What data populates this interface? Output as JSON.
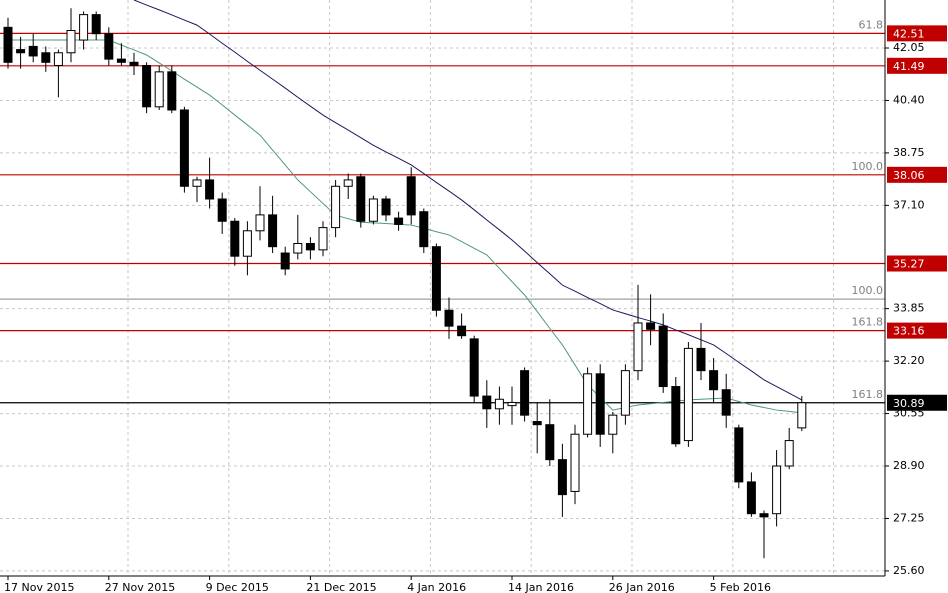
{
  "chart_data": {
    "type": "candlestick",
    "categories": [
      "17 Nov 2015",
      null,
      null,
      null,
      null,
      null,
      null,
      null,
      "27 Nov 2015",
      null,
      null,
      null,
      null,
      null,
      null,
      null,
      "9 Dec 2015",
      null,
      null,
      null,
      null,
      null,
      null,
      null,
      "21 Dec 2015",
      null,
      null,
      null,
      null,
      null,
      null,
      null,
      "4 Jan 2016",
      null,
      null,
      null,
      null,
      null,
      null,
      null,
      "14 Jan 2016",
      null,
      null,
      null,
      null,
      null,
      null,
      null,
      "26 Jan 2016",
      null,
      null,
      null,
      null,
      null,
      null,
      null,
      "5 Feb 2016",
      null,
      null,
      null,
      null,
      null,
      null,
      null
    ],
    "open": [
      42.7,
      42.0,
      42.1,
      41.9,
      41.5,
      41.9,
      42.3,
      43.1,
      42.5,
      41.7,
      41.6,
      41.5,
      40.2,
      41.3,
      40.1,
      37.7,
      37.9,
      37.3,
      36.6,
      35.5,
      36.3,
      36.8,
      35.6,
      35.6,
      35.9,
      35.7,
      36.4,
      37.7,
      38.0,
      36.6,
      37.3,
      36.7,
      38.0,
      36.9,
      35.8,
      33.8,
      33.3,
      32.9,
      31.1,
      30.7,
      30.8,
      31.9,
      30.3,
      30.2,
      29.1,
      28.1,
      29.9,
      31.8,
      29.9,
      30.5,
      31.9,
      33.4,
      33.3,
      31.4,
      29.7,
      32.6,
      31.9,
      31.3,
      30.1,
      28.4,
      27.4,
      27.4,
      28.9,
      30.1
    ],
    "high": [
      43.0,
      42.4,
      42.5,
      42.1,
      42.0,
      43.3,
      43.2,
      43.2,
      42.7,
      42.2,
      41.9,
      41.6,
      41.5,
      41.5,
      40.2,
      38.0,
      38.6,
      37.5,
      36.7,
      36.6,
      37.7,
      37.4,
      35.8,
      36.8,
      36.1,
      36.6,
      37.9,
      38.1,
      38.1,
      37.4,
      37.4,
      36.9,
      38.3,
      37.0,
      35.9,
      34.2,
      33.7,
      33.0,
      31.6,
      31.4,
      31.4,
      32.0,
      30.9,
      31.0,
      29.6,
      30.2,
      32.0,
      32.1,
      30.6,
      32.1,
      34.6,
      34.3,
      33.7,
      31.7,
      32.8,
      33.4,
      32.3,
      31.8,
      30.2,
      28.7,
      27.5,
      29.4,
      30.1,
      31.1
    ],
    "low": [
      41.4,
      41.4,
      41.6,
      41.3,
      40.5,
      41.6,
      42.0,
      42.3,
      41.5,
      41.5,
      41.2,
      40.0,
      40.1,
      40.0,
      37.5,
      37.2,
      37.0,
      36.2,
      35.2,
      34.9,
      36.0,
      35.6,
      34.9,
      35.4,
      35.4,
      35.5,
      36.1,
      37.3,
      36.4,
      36.5,
      36.6,
      36.3,
      36.5,
      35.6,
      33.6,
      32.9,
      32.9,
      30.9,
      30.1,
      30.2,
      30.2,
      30.3,
      29.3,
      28.9,
      27.3,
      27.7,
      29.8,
      29.5,
      29.3,
      30.2,
      31.6,
      32.7,
      31.2,
      29.5,
      29.5,
      31.6,
      30.9,
      30.1,
      28.2,
      27.3,
      26.0,
      27.0,
      28.8,
      30.0
    ],
    "close": [
      41.6,
      41.9,
      41.8,
      41.6,
      41.9,
      42.6,
      43.1,
      42.5,
      41.7,
      41.6,
      41.5,
      40.2,
      41.3,
      40.1,
      37.7,
      37.9,
      37.3,
      36.6,
      35.5,
      36.3,
      36.8,
      35.8,
      35.1,
      35.9,
      35.7,
      36.4,
      37.7,
      37.9,
      36.6,
      37.3,
      36.8,
      36.5,
      36.8,
      35.8,
      33.8,
      33.3,
      33.0,
      31.1,
      30.7,
      31.0,
      30.9,
      30.5,
      30.2,
      29.1,
      28.0,
      29.9,
      31.8,
      29.9,
      30.5,
      31.9,
      33.4,
      33.2,
      31.4,
      29.6,
      32.6,
      31.9,
      31.3,
      30.5,
      28.4,
      27.4,
      27.3,
      28.9,
      29.7,
      30.89
    ],
    "up_color": "#ffffff",
    "down_color": "#000000",
    "moving_averages": [
      {
        "color": "#1a1a5e",
        "values": [
          null,
          null,
          null,
          null,
          null,
          null,
          null,
          null,
          null,
          null,
          43.56,
          43.4,
          43.25,
          43.09,
          42.93,
          42.77,
          42.49,
          42.2,
          41.92,
          41.63,
          41.35,
          41.07,
          40.79,
          40.5,
          40.22,
          39.94,
          39.7,
          39.47,
          39.23,
          38.99,
          38.78,
          38.58,
          38.37,
          38.1,
          37.82,
          37.55,
          37.27,
          36.96,
          36.64,
          36.33,
          36.01,
          35.66,
          35.3,
          34.95,
          34.59,
          34.4,
          34.2,
          34.01,
          33.81,
          33.69,
          33.57,
          33.46,
          33.34,
          33.18,
          33.03,
          32.87,
          32.71,
          32.44,
          32.16,
          31.89,
          31.61,
          31.4,
          31.19,
          30.98
        ]
      },
      {
        "color": "#4f9a74",
        "values": [
          42.3,
          42.3,
          42.3,
          42.3,
          42.3,
          42.3,
          42.3,
          42.3,
          42.3,
          42.14,
          41.99,
          41.83,
          41.58,
          41.33,
          41.07,
          40.82,
          40.57,
          40.26,
          39.94,
          39.63,
          39.31,
          38.84,
          38.37,
          37.9,
          37.53,
          37.16,
          36.79,
          36.68,
          36.57,
          36.55,
          36.53,
          36.5,
          36.48,
          36.38,
          36.27,
          36.17,
          35.96,
          35.75,
          35.54,
          35.12,
          34.7,
          34.28,
          33.76,
          33.23,
          32.71,
          32.08,
          31.45,
          31.06,
          30.66,
          30.74,
          30.82,
          30.86,
          30.9,
          30.94,
          30.98,
          31.0,
          31.02,
          31.04,
          30.93,
          30.82,
          30.74,
          30.66,
          30.62,
          30.57
        ]
      }
    ],
    "levels": [
      {
        "value": 42.51,
        "color": "#c00000",
        "fib": "61.8",
        "price_label": true
      },
      {
        "value": 41.49,
        "color": "#c00000",
        "price_label": true
      },
      {
        "value": 38.06,
        "color": "#c00000",
        "fib": "100.0",
        "price_label": true
      },
      {
        "value": 35.27,
        "color": "#c00000",
        "price_label": true
      },
      {
        "value": 34.15,
        "color": "#a0a0a0",
        "fib": "100.0",
        "price_label": false
      },
      {
        "value": 33.16,
        "color": "#c00000",
        "fib": "161.8",
        "price_label": true
      },
      {
        "value": 30.89,
        "color": "#000000",
        "fib": "161.8",
        "price_label": true
      }
    ],
    "ylim": [
      25.44,
      43.56
    ],
    "yticks": [
      42.05,
      {
        "value": 40.4,
        "label": "40.40"
      },
      38.75,
      {
        "value": 37.1,
        "label": "37.10"
      },
      33.85,
      {
        "value": 32.2,
        "label": "32.20"
      },
      30.55,
      {
        "value": 28.9,
        "label": "28.90"
      },
      27.25,
      {
        "value": 25.6,
        "label": "25.60"
      }
    ],
    "grid": true
  }
}
